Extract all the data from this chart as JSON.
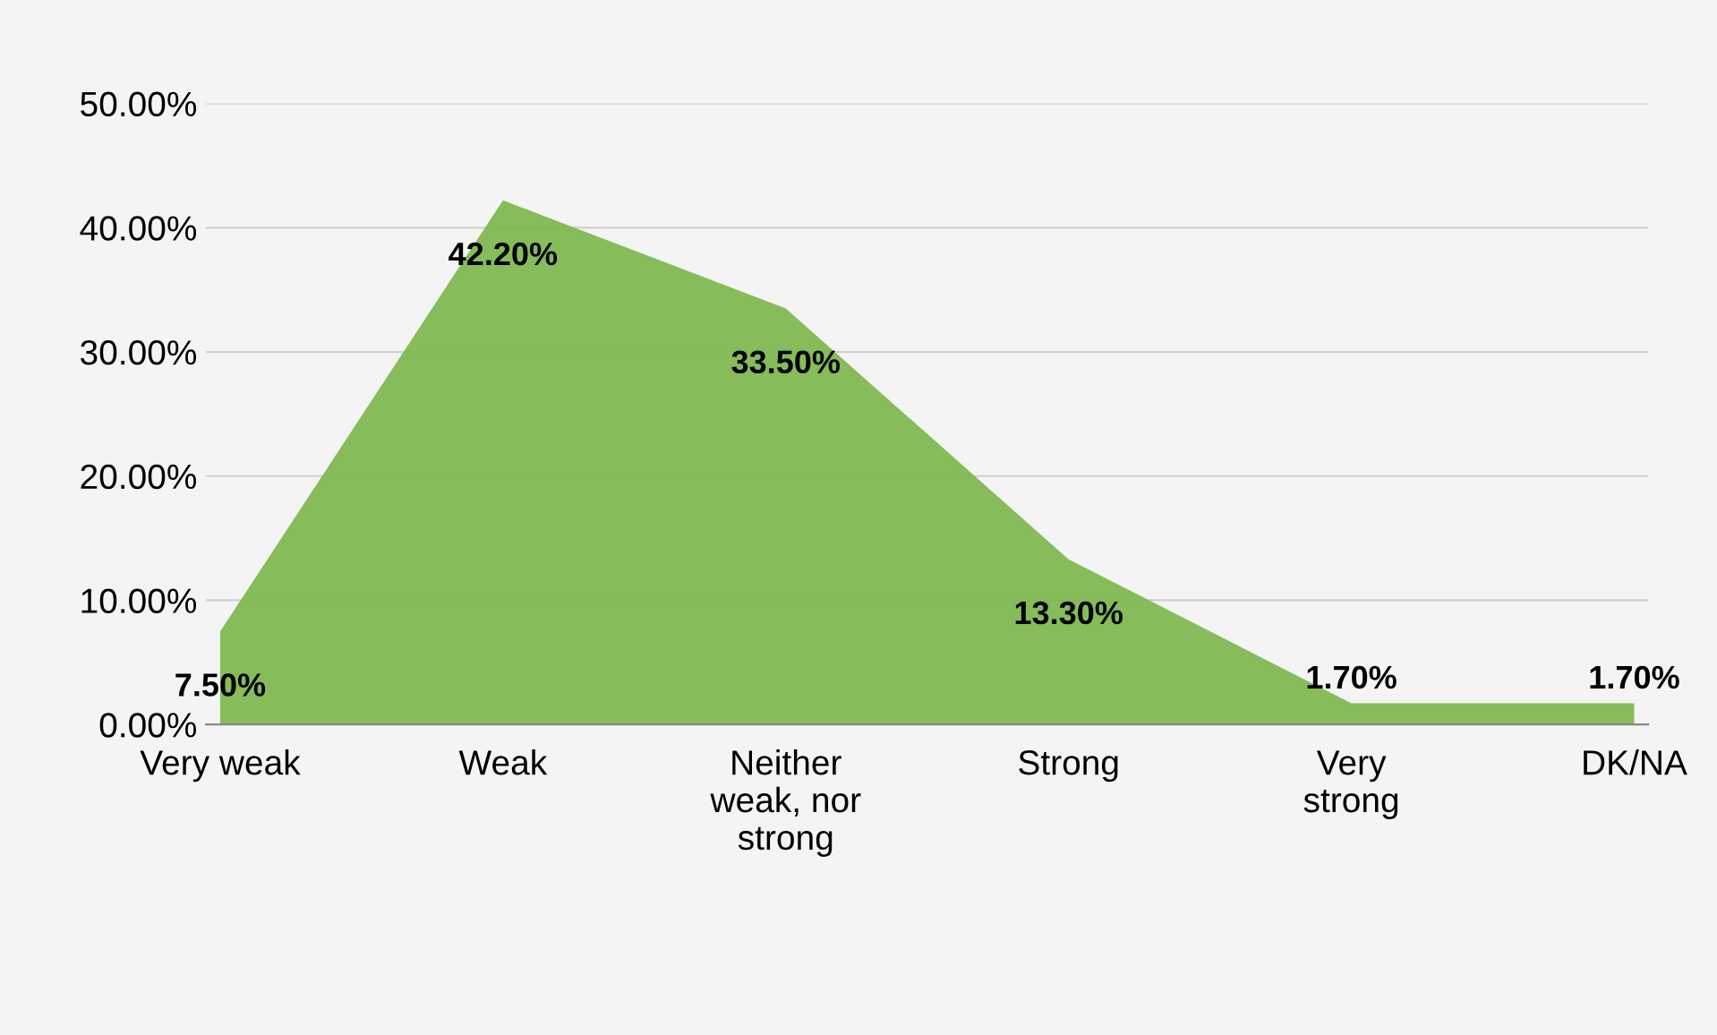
{
  "chart_data": {
    "type": "area",
    "categories": [
      "Very weak",
      "Weak",
      "Neither\nweak, nor\nstrong",
      "Strong",
      "Very\nstrong",
      "DK/NA"
    ],
    "values": [
      7.5,
      42.2,
      33.5,
      13.3,
      1.7,
      1.7
    ],
    "value_labels": [
      "7.50%",
      "42.20%",
      "33.50%",
      "13.30%",
      "1.70%",
      "1.70%"
    ],
    "color": "#7ab648",
    "ylim": [
      0,
      50
    ],
    "yticks": [
      {
        "value": 0,
        "label": "0.00%"
      },
      {
        "value": 10,
        "label": "10.00%"
      },
      {
        "value": 20,
        "label": "20.00%"
      },
      {
        "value": 30,
        "label": "30.00%"
      },
      {
        "value": 40,
        "label": "40.00%"
      },
      {
        "value": 50,
        "label": "50.00%"
      }
    ],
    "grid": "y"
  }
}
